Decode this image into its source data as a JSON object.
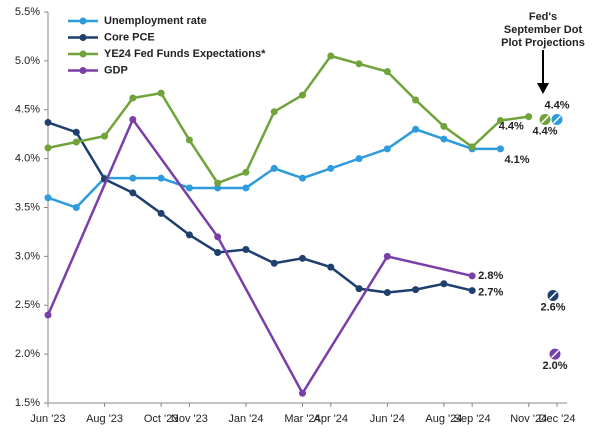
{
  "chart_data": {
    "type": "line",
    "annotation": "Fed's September Dot Plot Projections",
    "xlim": [
      "2023-06",
      "2024-12"
    ],
    "xticks": [
      {
        "value": "2023-06",
        "label": "Jun '23"
      },
      {
        "value": "2023-08",
        "label": "Aug '23"
      },
      {
        "value": "2023-10",
        "label": "Oct '23"
      },
      {
        "value": "2023-11",
        "label": "Nov '23"
      },
      {
        "value": "2024-01",
        "label": "Jan '24"
      },
      {
        "value": "2024-03",
        "label": "Mar '24"
      },
      {
        "value": "2024-04",
        "label": "Apr '24"
      },
      {
        "value": "2024-06",
        "label": "Jun '24"
      },
      {
        "value": "2024-08",
        "label": "Aug '24"
      },
      {
        "value": "2024-09",
        "label": "Sep '24"
      },
      {
        "value": "2024-11",
        "label": "Nov '24"
      },
      {
        "value": "2024-12",
        "label": "Dec '24"
      }
    ],
    "ylim": [
      1.5,
      5.5
    ],
    "yticks": [
      {
        "value": 1.5,
        "label": "1.5%"
      },
      {
        "value": 2.0,
        "label": "2.0%"
      },
      {
        "value": 2.5,
        "label": "2.5%"
      },
      {
        "value": 3.0,
        "label": "3.0%"
      },
      {
        "value": 3.5,
        "label": "3.5%"
      },
      {
        "value": 4.0,
        "label": "4.0%"
      },
      {
        "value": 4.5,
        "label": "4.5%"
      },
      {
        "value": 5.0,
        "label": "5.0%"
      },
      {
        "value": 5.5,
        "label": "5.5%"
      }
    ],
    "grid": false,
    "legend": "upper left",
    "projection_x": "2024-12",
    "series": [
      {
        "name": "Unemployment rate",
        "color": "#2e9bdc",
        "x": [
          "2023-06",
          "2023-07",
          "2023-08",
          "2023-09",
          "2023-10",
          "2023-11",
          "2023-12",
          "2024-01",
          "2024-02",
          "2024-03",
          "2024-04",
          "2024-05",
          "2024-06",
          "2024-07",
          "2024-08",
          "2024-09",
          "2024-10"
        ],
        "values": [
          3.6,
          3.5,
          3.8,
          3.8,
          3.8,
          3.7,
          3.7,
          3.7,
          3.9,
          3.8,
          3.9,
          4.0,
          4.1,
          4.3,
          4.2,
          4.1,
          4.1
        ],
        "end_label": "4.1%",
        "projection": 4.4,
        "projection_label": "4.4%"
      },
      {
        "name": "Core PCE",
        "color": "#1f3f6e",
        "x": [
          "2023-06",
          "2023-07",
          "2023-08",
          "2023-09",
          "2023-10",
          "2023-11",
          "2023-12",
          "2024-01",
          "2024-02",
          "2024-03",
          "2024-04",
          "2024-05",
          "2024-06",
          "2024-07",
          "2024-08",
          "2024-09"
        ],
        "values": [
          4.37,
          4.27,
          3.79,
          3.65,
          3.44,
          3.22,
          3.04,
          3.07,
          2.93,
          2.98,
          2.89,
          2.67,
          2.63,
          2.66,
          2.72,
          2.65
        ],
        "end_label": "2.7%",
        "projection": 2.6,
        "projection_label": "2.6%"
      },
      {
        "name": "YE24 Fed Funds Expectations*",
        "color": "#70a33a",
        "x": [
          "2023-06",
          "2023-07",
          "2023-08",
          "2023-09",
          "2023-10",
          "2023-11",
          "2023-12",
          "2024-01",
          "2024-02",
          "2024-03",
          "2024-04",
          "2024-05",
          "2024-06",
          "2024-07",
          "2024-08",
          "2024-09",
          "2024-10",
          "2024-11"
        ],
        "values": [
          4.11,
          4.17,
          4.23,
          4.62,
          4.67,
          4.19,
          3.75,
          3.86,
          4.48,
          4.65,
          5.05,
          4.97,
          4.89,
          4.6,
          4.33,
          4.12,
          4.39,
          4.43
        ],
        "end_label": "4.4%",
        "projection": 4.4,
        "projection_label": "4.4%"
      },
      {
        "name": "GDP",
        "color": "#7a3ea8",
        "x": [
          "2023-06",
          "2023-09",
          "2023-12",
          "2024-03",
          "2024-06",
          "2024-09"
        ],
        "values": [
          2.4,
          4.4,
          3.2,
          1.6,
          3.0,
          2.8
        ],
        "end_label": "2.8%",
        "projection": 2.0,
        "projection_label": "2.0%"
      }
    ]
  }
}
